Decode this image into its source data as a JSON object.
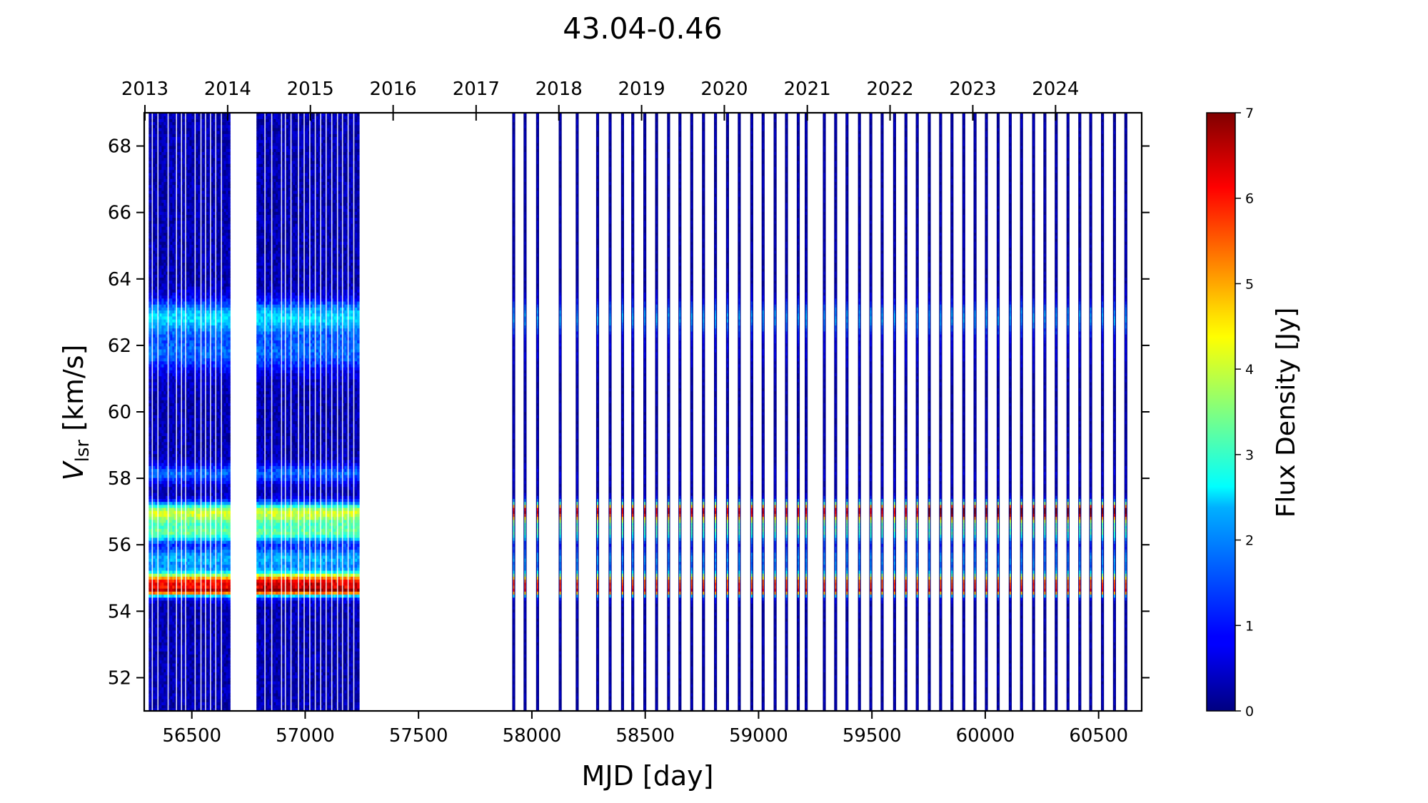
{
  "chart_data": {
    "type": "heatmap",
    "title": "43.04-0.46",
    "xlabel": "MJD [day]",
    "ylabel": "V",
    "ylabel_sub": "lsr",
    "ylabel_unit": " [km/s]",
    "xlim": [
      56290,
      60690
    ],
    "ylim": [
      51,
      69
    ],
    "xticks": [
      56500,
      57000,
      57500,
      58000,
      58500,
      59000,
      59500,
      60000,
      60500
    ],
    "yticks": [
      52,
      54,
      56,
      58,
      60,
      62,
      64,
      66,
      68
    ],
    "top_axis": {
      "labels": [
        "2013",
        "2014",
        "2015",
        "2016",
        "2017",
        "2018",
        "2019",
        "2020",
        "2021",
        "2022",
        "2023",
        "2024"
      ],
      "mjd": [
        56293,
        56658,
        57023,
        57388,
        57754,
        58119,
        58484,
        58849,
        59215,
        59580,
        59945,
        60310
      ]
    },
    "colorbar": {
      "label": "Flux Density [Jy]",
      "colormap": "jet",
      "range": [
        0,
        7
      ],
      "ticks": [
        0,
        1,
        2,
        3,
        4,
        5,
        6,
        7
      ]
    },
    "gap_colors": {
      "bright": "#ffffff",
      "dark_edge": "#000080"
    },
    "dense_periods": [
      {
        "start": 56310,
        "end": 56665,
        "gaps": [
          56323,
          56348,
          56393,
          56430,
          56452,
          56470,
          56512,
          56538,
          56558,
          56580,
          56603,
          56628
        ]
      },
      {
        "start": 56785,
        "end": 57235,
        "gaps": [
          56820,
          56850,
          56893,
          56910,
          56935,
          56968,
          56993,
          57018,
          57042,
          57066,
          57090,
          57115,
          57140,
          57162,
          57187,
          57212
        ]
      }
    ],
    "sparse_observations_mjd": [
      57915,
      57965,
      58020,
      58120,
      58195,
      58285,
      58340,
      58395,
      58440,
      58493,
      58545,
      58598,
      58648,
      58700,
      58752,
      58805,
      58858,
      58910,
      58965,
      59015,
      59068,
      59118,
      59170,
      59205,
      59285,
      59335,
      59385,
      59440,
      59490,
      59540,
      59595,
      59645,
      59695,
      59748,
      59798,
      59848,
      59900,
      59950,
      60000,
      60052,
      60105,
      60155,
      60208,
      60258,
      60308,
      60360,
      60412,
      60460,
      60512,
      60565,
      60615
    ],
    "velocity_components": [
      {
        "v_center": 54.85,
        "width": 0.22,
        "flux_early": 5.8,
        "flux_late": 5.4
      },
      {
        "v_center": 54.6,
        "width": 0.08,
        "flux_early": 3.0,
        "flux_late": 2.8
      },
      {
        "v_center": 55.6,
        "width": 0.25,
        "flux_early": 1.7,
        "flux_late": 1.5
      },
      {
        "v_center": 56.35,
        "width": 0.18,
        "flux_early": 2.6,
        "flux_late": 2.4
      },
      {
        "v_center": 56.75,
        "width": 0.2,
        "flux_early": 2.2,
        "flux_late": 2.2
      },
      {
        "v_center": 57.05,
        "width": 0.18,
        "flux_early": 2.8,
        "flux_late": 5.3
      },
      {
        "v_center": 58.15,
        "width": 0.2,
        "flux_early": 1.2,
        "flux_late": 0.3
      },
      {
        "v_center": 62.85,
        "width": 0.35,
        "flux_early": 2.0,
        "flux_late": 1.6
      },
      {
        "v_center": 61.8,
        "width": 0.4,
        "flux_early": 1.2,
        "flux_late": 0.3
      }
    ]
  }
}
